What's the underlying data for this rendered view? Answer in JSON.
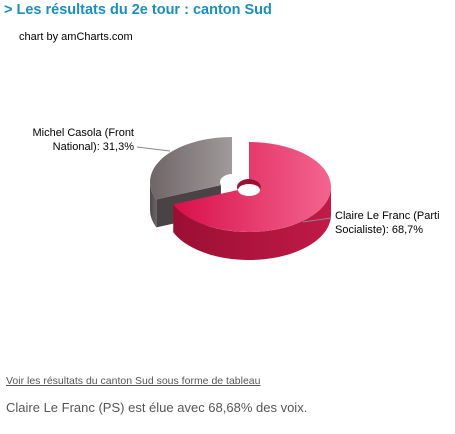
{
  "header": {
    "title": "> Les résultats du 2e tour : canton Sud"
  },
  "credit": "chart by amCharts.com",
  "chart_data": {
    "type": "pie",
    "style": "3d-donut",
    "slices": [
      {
        "name": "Claire Le Franc (Parti Socialiste)",
        "value": 68.7,
        "label_lines": [
          "Claire Le Franc (Parti",
          "Socialiste): 68,7%"
        ],
        "color": "#dc2d5c",
        "exploded": false
      },
      {
        "name": "Michel Casola (Front National)",
        "value": 31.3,
        "label_lines": [
          "Michel Casola (Front",
          "National): 31,3%"
        ],
        "color": "#7e7678",
        "exploded": true
      }
    ]
  },
  "footer": {
    "link_text": "Voir les résultats du canton Sud sous forme de tableau",
    "summary": "Claire Le Franc (PS) est élue avec 68,68% des voix."
  }
}
